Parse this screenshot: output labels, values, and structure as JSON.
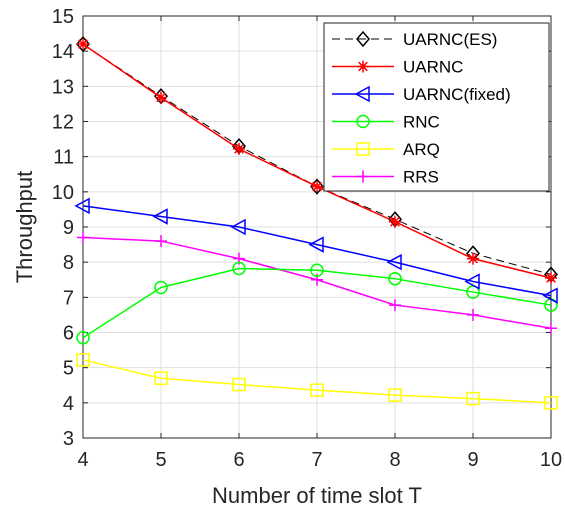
{
  "chart_data": {
    "type": "line",
    "xlabel": "Number of time slot T",
    "ylabel": "Throughput",
    "xlim": [
      4,
      10
    ],
    "ylim": [
      3,
      15
    ],
    "xticks": [
      4,
      5,
      6,
      7,
      8,
      9,
      10
    ],
    "yticks": [
      3,
      4,
      5,
      6,
      7,
      8,
      9,
      10,
      11,
      12,
      13,
      14,
      15
    ],
    "grid": true,
    "legend_position": "top-right",
    "x": [
      4,
      5,
      6,
      7,
      8,
      9,
      10
    ],
    "series": [
      {
        "name": "UARNC(ES)",
        "color": "#000000",
        "marker": "diamond",
        "dash": true,
        "values": [
          14.2,
          12.72,
          11.3,
          10.15,
          9.22,
          8.25,
          7.65
        ]
      },
      {
        "name": "UARNC",
        "color": "#ff0000",
        "marker": "asterisk",
        "dash": false,
        "values": [
          14.2,
          12.68,
          11.22,
          10.15,
          9.15,
          8.1,
          7.55
        ]
      },
      {
        "name": "UARNC(fixed)",
        "color": "#0000ff",
        "marker": "triangle-left",
        "dash": false,
        "values": [
          9.6,
          9.3,
          9.0,
          8.5,
          8.0,
          7.45,
          7.05
        ]
      },
      {
        "name": "RNC",
        "color": "#00ff00",
        "marker": "circle",
        "dash": false,
        "values": [
          5.85,
          7.28,
          7.82,
          7.77,
          7.53,
          7.15,
          6.78
        ]
      },
      {
        "name": "ARQ",
        "color": "#ffff00",
        "marker": "square",
        "dash": false,
        "values": [
          5.22,
          4.7,
          4.52,
          4.36,
          4.22,
          4.12,
          4.0
        ]
      },
      {
        "name": "RRS",
        "color": "#ff00ff",
        "marker": "plus",
        "dash": false,
        "values": [
          8.7,
          8.6,
          8.1,
          7.5,
          6.78,
          6.5,
          6.12
        ]
      }
    ]
  }
}
